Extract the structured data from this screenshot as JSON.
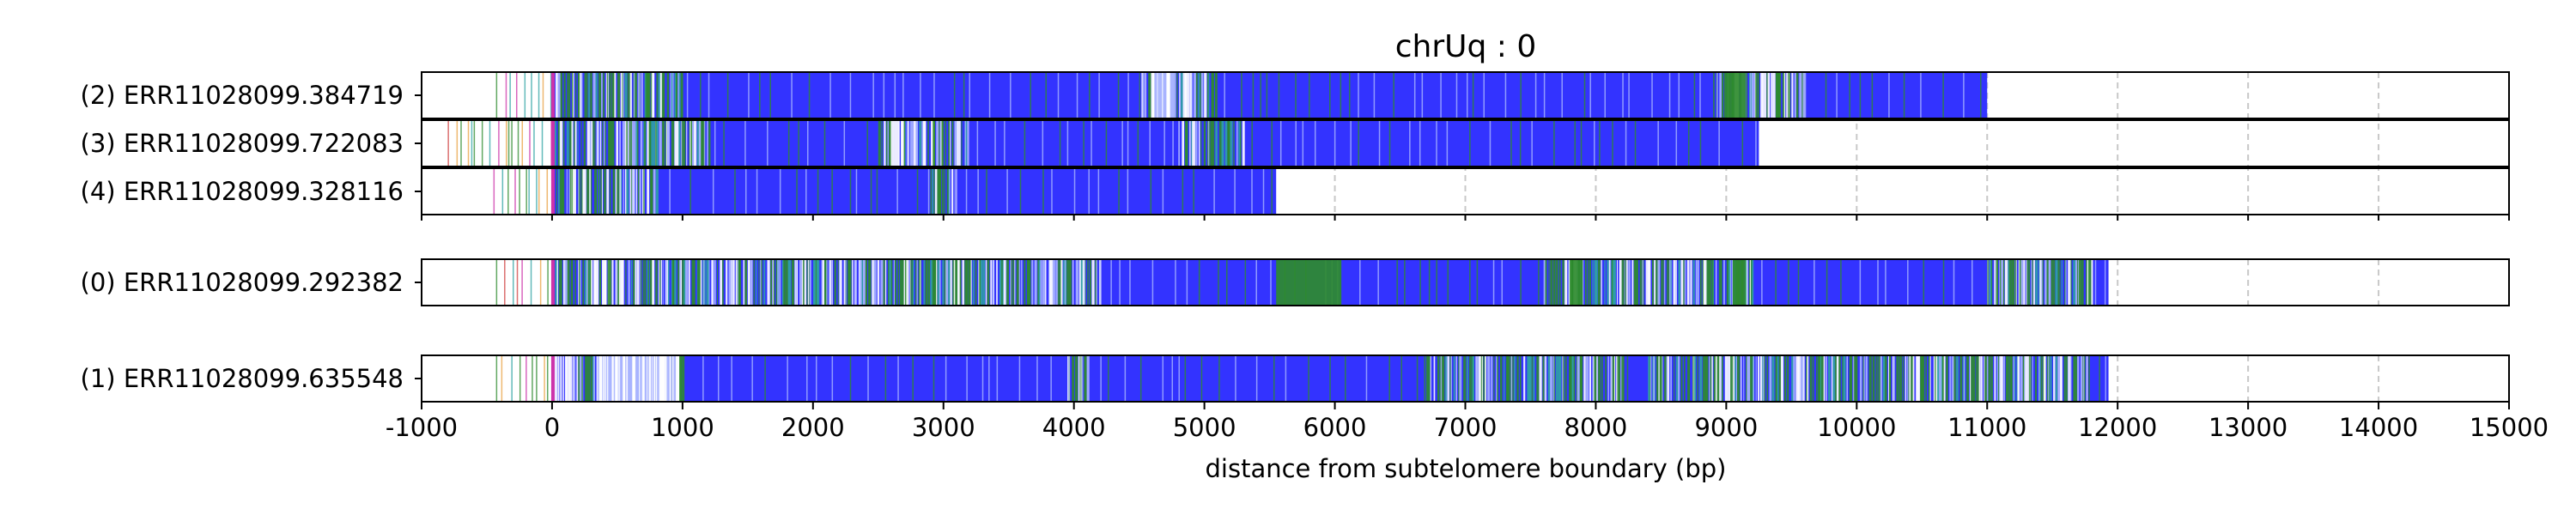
{
  "chart_data": {
    "type": "heatmap",
    "title": "chrUq : 0",
    "xlabel": "distance from subtelomere boundary (bp)",
    "xlim": [
      -1000,
      15000
    ],
    "xticks": [
      -1000,
      0,
      1000,
      2000,
      3000,
      4000,
      5000,
      6000,
      7000,
      8000,
      9000,
      10000,
      11000,
      12000,
      13000,
      14000,
      15000
    ],
    "xtick_labels": [
      "-1000",
      "0",
      "1000",
      "2000",
      "3000",
      "4000",
      "5000",
      "6000",
      "7000",
      "8000",
      "9000",
      "10000",
      "11000",
      "12000",
      "13000",
      "14000",
      "15000"
    ],
    "grid": "vertical dashed",
    "colors": {
      "main": "#3333ff",
      "green": "#2e8b2e",
      "teal": "#2fa3a3",
      "white": "#ffffff",
      "magenta": "#cc33aa",
      "orange": "#e8a040",
      "red": "#d04040",
      "lightblue": "#a8b4ff"
    },
    "groups": [
      {
        "reads": [
          {
            "label": "(2) ERR11028099.384719",
            "start": -430,
            "end": 11000,
            "dense_ranges": [
              [
                0,
                1000
              ],
              [
                4500,
                5100
              ],
              [
                8900,
                9600
              ]
            ],
            "green_blocks": [
              [
                9000,
                9150
              ]
            ],
            "white_blocks": [
              [
                4600,
                4750
              ]
            ]
          },
          {
            "label": "(3) ERR11028099.722083",
            "start": -800,
            "end": 9250,
            "dense_ranges": [
              [
                0,
                1200
              ],
              [
                2500,
                3200
              ],
              [
                4800,
                5300
              ]
            ],
            "green_blocks": [],
            "white_blocks": []
          },
          {
            "label": "(4) ERR11028099.328116",
            "start": -450,
            "end": 5550,
            "dense_ranges": [
              [
                0,
                800
              ],
              [
                2900,
                3100
              ]
            ],
            "green_blocks": [],
            "white_blocks": []
          }
        ]
      },
      {
        "reads": [
          {
            "label": "(0) ERR11028099.292382",
            "start": -430,
            "end": 11930,
            "dense_ranges": [
              [
                0,
                4200
              ],
              [
                7600,
                9200
              ],
              [
                11000,
                11800
              ]
            ],
            "green_blocks": [
              [
                5550,
                6050
              ],
              [
                7800,
                7900
              ],
              [
                9050,
                9150
              ]
            ],
            "white_blocks": []
          }
        ]
      },
      {
        "reads": [
          {
            "label": "(1) ERR11028099.635548",
            "start": -430,
            "end": 11930,
            "dense_ranges": [
              [
                0,
                1000
              ],
              [
                3950,
                4100
              ],
              [
                6700,
                8200
              ],
              [
                8400,
                11800
              ]
            ],
            "green_blocks": [],
            "white_blocks": [
              [
                350,
                950
              ]
            ]
          }
        ]
      }
    ]
  }
}
